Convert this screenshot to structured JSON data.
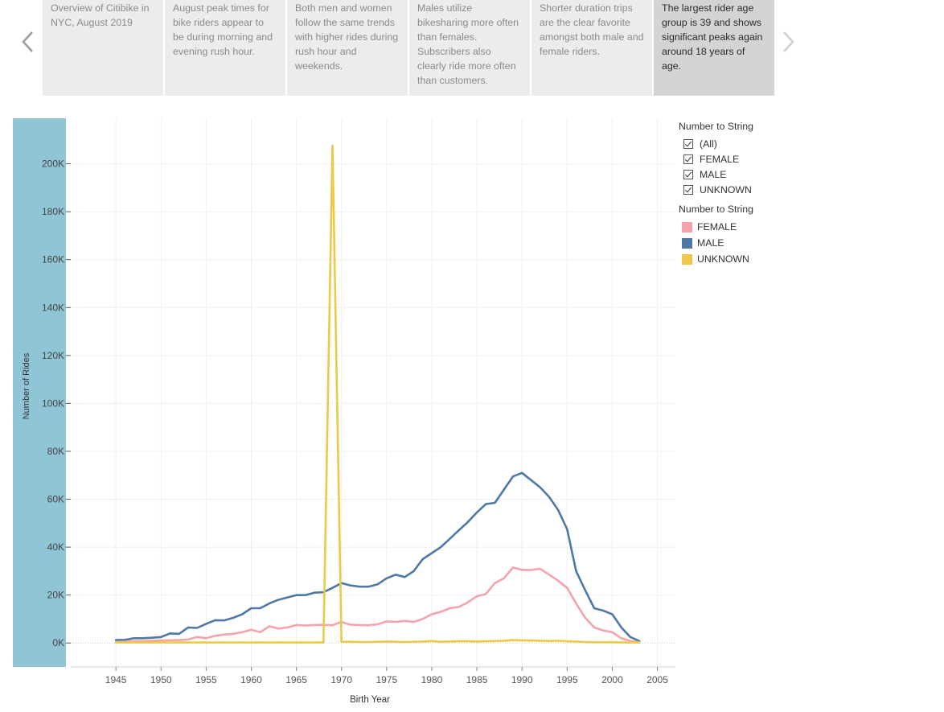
{
  "story": {
    "points": [
      {
        "text": "Overview of Citibike in NYC, August 2019",
        "active": false
      },
      {
        "text": "August peak times for bike riders appear to be during morning and evening rush hour.",
        "active": false
      },
      {
        "text": "Both men and women follow the same trends with higher rides during rush hour and weekends.",
        "active": false
      },
      {
        "text": "Males utilize bikesharing more often than females. Subscribers also clearly ride more often than customers.",
        "active": false
      },
      {
        "text": "Shorter duration trips are the clear favorite amongst both male and female riders.",
        "active": false
      },
      {
        "text": "The largest rider age group is 39 and shows significant peaks again around 18 years of age.",
        "active": true
      }
    ]
  },
  "legend": {
    "filter_title": "Number to String",
    "filter_items": [
      "(All)",
      "FEMALE",
      "MALE",
      "UNKNOWN"
    ],
    "color_title": "Number to String",
    "color_items": [
      {
        "label": "FEMALE",
        "color": "#f4a3ad"
      },
      {
        "label": "MALE",
        "color": "#4e79a7"
      },
      {
        "label": "UNKNOWN",
        "color": "#edc948"
      }
    ]
  },
  "chart_data": {
    "type": "line",
    "xlabel": "Birth Year",
    "ylabel": "Number of Rides",
    "xlim": [
      1940,
      2007
    ],
    "ylim": [
      -10000,
      219000
    ],
    "x_ticks": [
      1945,
      1950,
      1955,
      1960,
      1965,
      1970,
      1975,
      1980,
      1985,
      1990,
      1995,
      2000,
      2005
    ],
    "y_ticks": [
      0,
      20000,
      40000,
      60000,
      80000,
      100000,
      120000,
      140000,
      160000,
      180000,
      200000
    ],
    "y_tick_labels": [
      "0K",
      "20K",
      "40K",
      "60K",
      "80K",
      "100K",
      "120K",
      "140K",
      "160K",
      "180K",
      "200K"
    ],
    "x": [
      1945,
      1946,
      1947,
      1948,
      1949,
      1950,
      1951,
      1952,
      1953,
      1954,
      1955,
      1956,
      1957,
      1958,
      1959,
      1960,
      1961,
      1962,
      1963,
      1964,
      1965,
      1966,
      1967,
      1968,
      1969,
      1970,
      1971,
      1972,
      1973,
      1974,
      1975,
      1976,
      1977,
      1978,
      1979,
      1980,
      1981,
      1982,
      1983,
      1984,
      1985,
      1986,
      1987,
      1988,
      1989,
      1990,
      1991,
      1992,
      1993,
      1994,
      1995,
      1996,
      1997,
      1998,
      1999,
      2000,
      2001,
      2002,
      2003
    ],
    "series": [
      {
        "name": "FEMALE",
        "color": "#f4a3ad",
        "values": [
          300,
          500,
          700,
          800,
          900,
          1000,
          1100,
          1200,
          1400,
          2500,
          2000,
          3000,
          3500,
          3800,
          4500,
          5500,
          4500,
          7000,
          6000,
          6500,
          7500,
          7300,
          7500,
          7600,
          7400,
          8800,
          7600,
          7500,
          7400,
          7800,
          9000,
          8800,
          9200,
          8800,
          10000,
          12000,
          13000,
          14500,
          15000,
          17000,
          19500,
          20500,
          25000,
          27000,
          31500,
          30500,
          30500,
          31000,
          28500,
          26000,
          23000,
          16500,
          10500,
          6500,
          5200,
          4500,
          2000,
          800,
          300
        ]
      },
      {
        "name": "MALE",
        "color": "#4e79a7",
        "values": [
          1200,
          1300,
          2000,
          2000,
          2200,
          2500,
          4000,
          3800,
          6500,
          6300,
          8000,
          9500,
          9400,
          10500,
          12000,
          14500,
          14500,
          16500,
          18000,
          19000,
          20000,
          20000,
          21000,
          21200,
          23000,
          25000,
          24000,
          23500,
          23500,
          24500,
          27000,
          28500,
          27500,
          30000,
          35000,
          37500,
          40000,
          43500,
          47000,
          50500,
          54500,
          58000,
          58500,
          64000,
          69500,
          71000,
          68000,
          65000,
          61000,
          55500,
          47500,
          30000,
          22000,
          14500,
          13500,
          12000,
          6500,
          2500,
          800
        ]
      },
      {
        "name": "UNKNOWN",
        "color": "#edc948",
        "values": [
          200,
          200,
          200,
          200,
          200,
          200,
          200,
          200,
          200,
          200,
          200,
          200,
          200,
          200,
          200,
          200,
          200,
          200,
          200,
          200,
          200,
          200,
          200,
          200,
          207500,
          500,
          500,
          400,
          400,
          500,
          600,
          500,
          400,
          500,
          600,
          800,
          500,
          600,
          700,
          700,
          600,
          700,
          800,
          900,
          1200,
          1100,
          1000,
          900,
          800,
          900,
          700,
          600,
          400,
          300,
          300,
          300,
          200,
          200,
          200
        ]
      }
    ]
  }
}
